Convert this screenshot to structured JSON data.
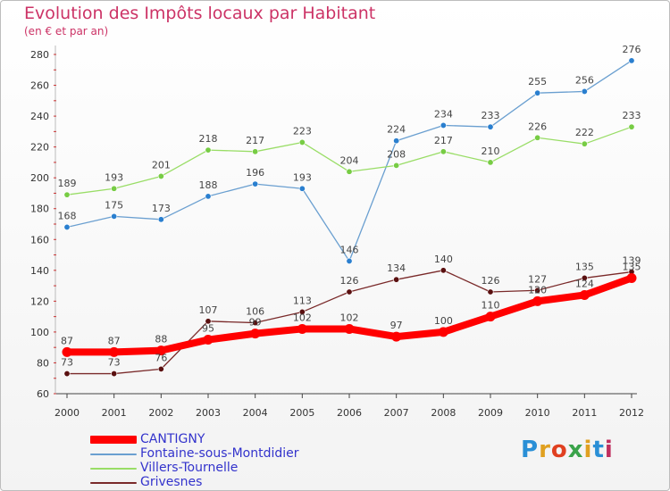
{
  "header": {
    "title": "Evolution des Impôts locaux par Habitant",
    "subtitle": "(en € et par an)"
  },
  "logo": {
    "text": "Proxiti",
    "colors": [
      "#2a8fd6",
      "#e0a020",
      "#e04020",
      "#3aa34a",
      "#e0a020",
      "#2a8fd6",
      "#c03060"
    ]
  },
  "chart_data": {
    "type": "line",
    "x": [
      2000,
      2001,
      2002,
      2003,
      2004,
      2005,
      2006,
      2007,
      2008,
      2009,
      2010,
      2011,
      2012
    ],
    "ylim": [
      60,
      280
    ],
    "yticks": [
      60,
      80,
      100,
      120,
      140,
      160,
      180,
      200,
      220,
      240,
      260,
      280
    ],
    "grid": false,
    "legend_position": "bottom-left",
    "series": [
      {
        "name": "Fontaine-sous-Montdidier",
        "color": "#6a9fd0",
        "marker_color": "#2a7fcf",
        "values": [
          168,
          175,
          173,
          188,
          196,
          193,
          146,
          224,
          234,
          233,
          255,
          256,
          276
        ]
      },
      {
        "name": "Villers-Tournelle",
        "color": "#99dd66",
        "marker_color": "#77cc44",
        "values": [
          189,
          193,
          201,
          218,
          217,
          223,
          204,
          208,
          217,
          210,
          226,
          222,
          233
        ]
      },
      {
        "name": "Grivesnes",
        "color": "#7a2a2a",
        "marker_color": "#5a1010",
        "values": [
          73,
          73,
          76,
          107,
          106,
          113,
          126,
          134,
          140,
          126,
          127,
          135,
          139
        ]
      },
      {
        "name": "CANTIGNY",
        "color": "#ff0000",
        "marker_color": "#ff0000",
        "values": [
          87,
          87,
          88,
          95,
          99,
          102,
          102,
          97,
          100,
          110,
          120,
          124,
          135
        ]
      }
    ],
    "legend_order": [
      "CANTIGNY",
      "Fontaine-sous-Montdidier",
      "Villers-Tournelle",
      "Grivesnes"
    ]
  }
}
